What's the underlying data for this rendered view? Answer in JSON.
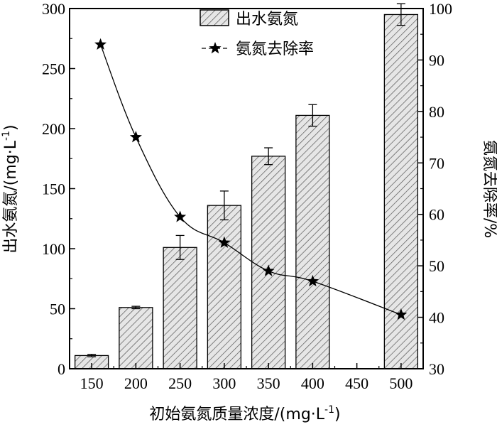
{
  "chart_data": {
    "type": "bar+line",
    "x": [
      150,
      200,
      250,
      300,
      350,
      400,
      450,
      500
    ],
    "x_tick_labels": [
      "150",
      "200",
      "250",
      "300",
      "350",
      "400",
      "450",
      "500"
    ],
    "xlabel": "初始氨氮质量浓度/(mg·L",
    "xlabel_sup": "-1",
    "xlabel_end": ")",
    "ylabel_left": "出水氨氮/(mg·L",
    "ylabel_left_sup": "-1",
    "ylabel_left_end": ")",
    "ylabel_right": "氨氮去除率/%",
    "ylim_left": [
      0,
      300
    ],
    "yticks_left": [
      0,
      50,
      100,
      150,
      200,
      250,
      300
    ],
    "ylim_right": [
      30,
      100
    ],
    "yticks_right": [
      30,
      40,
      50,
      60,
      70,
      80,
      90,
      100
    ],
    "series": [
      {
        "name": "出水氨氮",
        "kind": "bar",
        "axis": "left",
        "x": [
          150,
          200,
          250,
          300,
          350,
          400,
          500
        ],
        "values": [
          11,
          51,
          101,
          136,
          177,
          211,
          295
        ],
        "error": [
          1,
          1,
          10,
          12,
          7,
          9,
          9
        ]
      },
      {
        "name": "氨氮去除率",
        "kind": "line",
        "marker": "star",
        "axis": "right",
        "x": [
          160,
          200,
          250,
          300,
          350,
          400,
          500
        ],
        "values": [
          93,
          75,
          59.5,
          54.5,
          49,
          47,
          40.5
        ]
      }
    ],
    "legend": {
      "position": "top-center",
      "entries": [
        "出水氨氮",
        "氨氮去除率"
      ]
    },
    "grid": false,
    "bar_fill": "#e6e6e6",
    "hatch_color": "#555555",
    "line_color": "#000000"
  }
}
